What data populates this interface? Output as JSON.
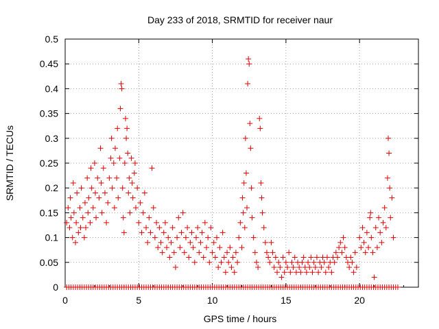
{
  "chart_data": {
    "type": "scatter",
    "title": "Day 233 of 2018, SRMTID for receiver naur",
    "xlabel": "GPS time / hours",
    "ylabel": "SRMTID / TECUs",
    "xlim": [
      0,
      24
    ],
    "ylim": [
      0,
      0.5
    ],
    "x_ticks": [
      0,
      5,
      10,
      15,
      20
    ],
    "x_tick_labels": [
      "0",
      "5",
      "10",
      "15",
      "20"
    ],
    "y_ticks": [
      0,
      0.05,
      0.1,
      0.15,
      0.2,
      0.25,
      0.3,
      0.35,
      0.4,
      0.45,
      0.5
    ],
    "y_tick_labels": [
      "0",
      "0.05",
      "0.1",
      "0.15",
      "0.2",
      "0.25",
      "0.3",
      "0.35",
      "0.4",
      "0.45",
      "0.5"
    ],
    "grid": true,
    "marker": "+",
    "color": "#e00000",
    "series": [
      {
        "name": "SRMTID",
        "points": [
          [
            0.1,
            0.13
          ],
          [
            0.2,
            0.16
          ],
          [
            0.3,
            0.12
          ],
          [
            0.35,
            0.18
          ],
          [
            0.4,
            0.14
          ],
          [
            0.5,
            0.1
          ],
          [
            0.55,
            0.21
          ],
          [
            0.6,
            0.15
          ],
          [
            0.7,
            0.09
          ],
          [
            0.75,
            0.13
          ],
          [
            0.8,
            0.19
          ],
          [
            0.9,
            0.11
          ],
          [
            1.0,
            0.16
          ],
          [
            1.05,
            0.12
          ],
          [
            1.1,
            0.2
          ],
          [
            1.2,
            0.14
          ],
          [
            1.3,
            0.1
          ],
          [
            1.35,
            0.17
          ],
          [
            1.4,
            0.12
          ],
          [
            1.5,
            0.22
          ],
          [
            1.55,
            0.15
          ],
          [
            1.6,
            0.18
          ],
          [
            1.7,
            0.13
          ],
          [
            1.75,
            0.24
          ],
          [
            1.8,
            0.2
          ],
          [
            1.9,
            0.16
          ],
          [
            2.0,
            0.25
          ],
          [
            2.05,
            0.19
          ],
          [
            2.1,
            0.14
          ],
          [
            2.2,
            0.22
          ],
          [
            2.3,
            0.18
          ],
          [
            2.4,
            0.28
          ],
          [
            2.45,
            0.21
          ],
          [
            2.5,
            0.15
          ],
          [
            2.6,
            0.24
          ],
          [
            2.7,
            0.19
          ],
          [
            2.8,
            0.13
          ],
          [
            2.9,
            0.17
          ],
          [
            3.0,
            0.22
          ],
          [
            3.1,
            0.26
          ],
          [
            3.15,
            0.3
          ],
          [
            3.2,
            0.2
          ],
          [
            3.3,
            0.25
          ],
          [
            3.35,
            0.16
          ],
          [
            3.4,
            0.28
          ],
          [
            3.5,
            0.22
          ],
          [
            3.55,
            0.32
          ],
          [
            3.6,
            0.18
          ],
          [
            3.7,
            0.26
          ],
          [
            3.75,
            0.36
          ],
          [
            3.8,
            0.41
          ],
          [
            3.85,
            0.4
          ],
          [
            3.9,
            0.2
          ],
          [
            3.95,
            0.14
          ],
          [
            4.0,
            0.11
          ],
          [
            4.05,
            0.25
          ],
          [
            4.1,
            0.34
          ],
          [
            4.15,
            0.3
          ],
          [
            4.2,
            0.32
          ],
          [
            4.25,
            0.27
          ],
          [
            4.3,
            0.19
          ],
          [
            4.35,
            0.22
          ],
          [
            4.4,
            0.15
          ],
          [
            4.5,
            0.26
          ],
          [
            4.55,
            0.21
          ],
          [
            4.6,
            0.18
          ],
          [
            4.7,
            0.23
          ],
          [
            4.75,
            0.25
          ],
          [
            4.8,
            0.16
          ],
          [
            4.9,
            0.2
          ],
          [
            5.0,
            0.13
          ],
          [
            5.1,
            0.17
          ],
          [
            5.2,
            0.11
          ],
          [
            5.3,
            0.15
          ],
          [
            5.4,
            0.19
          ],
          [
            5.5,
            0.12
          ],
          [
            5.6,
            0.09
          ],
          [
            5.7,
            0.14
          ],
          [
            5.8,
            0.11
          ],
          [
            5.9,
            0.24
          ],
          [
            6.0,
            0.16
          ],
          [
            6.1,
            0.1
          ],
          [
            6.2,
            0.13
          ],
          [
            6.3,
            0.08
          ],
          [
            6.4,
            0.12
          ],
          [
            6.5,
            0.09
          ],
          [
            6.6,
            0.07
          ],
          [
            6.7,
            0.11
          ],
          [
            6.8,
            0.13
          ],
          [
            6.9,
            0.08
          ],
          [
            7.0,
            0.1
          ],
          [
            7.1,
            0.06
          ],
          [
            7.2,
            0.09
          ],
          [
            7.3,
            0.12
          ],
          [
            7.4,
            0.07
          ],
          [
            7.5,
            0.04
          ],
          [
            7.6,
            0.1
          ],
          [
            7.7,
            0.14
          ],
          [
            7.8,
            0.08
          ],
          [
            7.9,
            0.11
          ],
          [
            8.0,
            0.15
          ],
          [
            8.1,
            0.07
          ],
          [
            8.2,
            0.1
          ],
          [
            8.3,
            0.12
          ],
          [
            8.4,
            0.06
          ],
          [
            8.5,
            0.09
          ],
          [
            8.6,
            0.11
          ],
          [
            8.7,
            0.08
          ],
          [
            8.8,
            0.05
          ],
          [
            8.9,
            0.1
          ],
          [
            9.0,
            0.12
          ],
          [
            9.1,
            0.07
          ],
          [
            9.2,
            0.09
          ],
          [
            9.3,
            0.11
          ],
          [
            9.4,
            0.06
          ],
          [
            9.5,
            0.13
          ],
          [
            9.6,
            0.08
          ],
          [
            9.7,
            0.1
          ],
          [
            9.8,
            0.05
          ],
          [
            9.9,
            0.12
          ],
          [
            10.0,
            0.07
          ],
          [
            10.1,
            0.09
          ],
          [
            10.2,
            0.06
          ],
          [
            10.3,
            0.1
          ],
          [
            10.4,
            0.04
          ],
          [
            10.5,
            0.08
          ],
          [
            10.6,
            0.05
          ],
          [
            10.7,
            0.11
          ],
          [
            10.8,
            0.06
          ],
          [
            10.9,
            0.03
          ],
          [
            11.0,
            0.07
          ],
          [
            11.1,
            0.05
          ],
          [
            11.2,
            0.08
          ],
          [
            11.3,
            0.04
          ],
          [
            11.4,
            0.06
          ],
          [
            11.5,
            0.03
          ],
          [
            11.6,
            0.07
          ],
          [
            11.7,
            0.05
          ],
          [
            11.8,
            0.1
          ],
          [
            11.9,
            0.13
          ],
          [
            12.0,
            0.08
          ],
          [
            12.05,
            0.18
          ],
          [
            12.1,
            0.15
          ],
          [
            12.15,
            0.21
          ],
          [
            12.2,
            0.12
          ],
          [
            12.25,
            0.3
          ],
          [
            12.3,
            0.23
          ],
          [
            12.35,
            0.16
          ],
          [
            12.4,
            0.41
          ],
          [
            12.45,
            0.46
          ],
          [
            12.5,
            0.45
          ],
          [
            12.55,
            0.33
          ],
          [
            12.6,
            0.28
          ],
          [
            12.65,
            0.2
          ],
          [
            12.7,
            0.14
          ],
          [
            12.8,
            0.1
          ],
          [
            12.9,
            0.07
          ],
          [
            13.0,
            0.05
          ],
          [
            13.1,
            0.04
          ],
          [
            13.2,
            0.34
          ],
          [
            13.25,
            0.32
          ],
          [
            13.3,
            0.21
          ],
          [
            13.35,
            0.18
          ],
          [
            13.4,
            0.15
          ],
          [
            13.5,
            0.12
          ],
          [
            13.6,
            0.09
          ],
          [
            13.7,
            0.07
          ],
          [
            13.8,
            0.06
          ],
          [
            13.9,
            0.05
          ],
          [
            14.0,
            0.09
          ],
          [
            14.1,
            0.07
          ],
          [
            14.2,
            0.04
          ],
          [
            14.3,
            0.06
          ],
          [
            14.4,
            0.03
          ],
          [
            14.5,
            0.05
          ],
          [
            14.6,
            0.04
          ],
          [
            14.7,
            0.02
          ],
          [
            14.8,
            0.06
          ],
          [
            14.9,
            0.03
          ],
          [
            15.0,
            0.05
          ],
          [
            15.1,
            0.04
          ],
          [
            15.2,
            0.07
          ],
          [
            15.3,
            0.03
          ],
          [
            15.4,
            0.05
          ],
          [
            15.5,
            0.04
          ],
          [
            15.6,
            0.06
          ],
          [
            15.7,
            0.03
          ],
          [
            15.8,
            0.05
          ],
          [
            15.9,
            0.04
          ],
          [
            16.0,
            0.03
          ],
          [
            16.1,
            0.05
          ],
          [
            16.2,
            0.06
          ],
          [
            16.3,
            0.04
          ],
          [
            16.4,
            0.03
          ],
          [
            16.5,
            0.05
          ],
          [
            16.6,
            0.04
          ],
          [
            16.7,
            0.06
          ],
          [
            16.8,
            0.03
          ],
          [
            16.9,
            0.05
          ],
          [
            17.0,
            0.04
          ],
          [
            17.1,
            0.06
          ],
          [
            17.2,
            0.03
          ],
          [
            17.3,
            0.05
          ],
          [
            17.4,
            0.04
          ],
          [
            17.5,
            0.06
          ],
          [
            17.6,
            0.05
          ],
          [
            17.7,
            0.03
          ],
          [
            17.8,
            0.06
          ],
          [
            17.9,
            0.04
          ],
          [
            18.0,
            0.05
          ],
          [
            18.1,
            0.03
          ],
          [
            18.2,
            0.06
          ],
          [
            18.3,
            0.05
          ],
          [
            18.4,
            0.07
          ],
          [
            18.5,
            0.06
          ],
          [
            18.6,
            0.08
          ],
          [
            18.7,
            0.09
          ],
          [
            18.8,
            0.07
          ],
          [
            18.9,
            0.1
          ],
          [
            19.0,
            0.08
          ],
          [
            19.1,
            0.06
          ],
          [
            19.2,
            0.05
          ],
          [
            19.3,
            0.04
          ],
          [
            19.4,
            0.06
          ],
          [
            19.5,
            0.05
          ],
          [
            19.6,
            0.03
          ],
          [
            19.7,
            0.07
          ],
          [
            19.8,
            0.04
          ],
          [
            20.0,
            0.1
          ],
          [
            20.1,
            0.08
          ],
          [
            20.2,
            0.12
          ],
          [
            20.3,
            0.09
          ],
          [
            20.4,
            0.07
          ],
          [
            20.5,
            0.11
          ],
          [
            20.6,
            0.08
          ],
          [
            20.7,
            0.14
          ],
          [
            20.75,
            0.15
          ],
          [
            20.8,
            0.1
          ],
          [
            20.9,
            0.07
          ],
          [
            21.0,
            0.02
          ],
          [
            21.1,
            0.12
          ],
          [
            21.2,
            0.08
          ],
          [
            21.3,
            0.14
          ],
          [
            21.4,
            0.11
          ],
          [
            21.5,
            0.09
          ],
          [
            21.6,
            0.13
          ],
          [
            21.7,
            0.16
          ],
          [
            21.8,
            0.12
          ],
          [
            21.9,
            0.22
          ],
          [
            21.95,
            0.3
          ],
          [
            22.0,
            0.27
          ],
          [
            22.05,
            0.2
          ],
          [
            22.1,
            0.14
          ],
          [
            22.2,
            0.18
          ],
          [
            22.3,
            0.1
          ]
        ]
      }
    ],
    "zero_baseline": {
      "x_start": 0.1,
      "x_end": 22.6,
      "x_step": 0.15,
      "y": 0
    }
  }
}
